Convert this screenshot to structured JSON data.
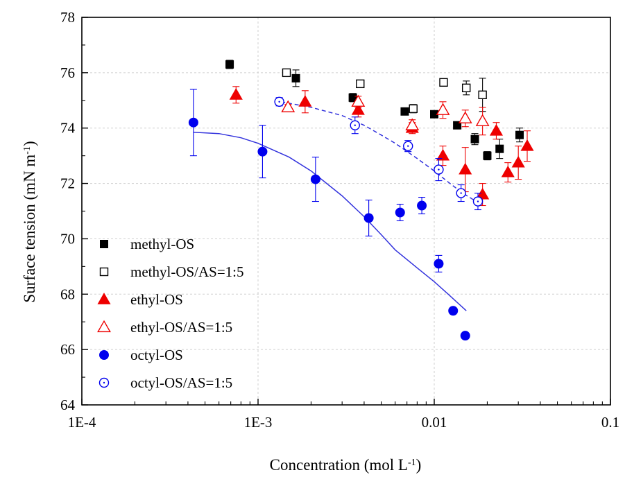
{
  "chart_data": {
    "type": "scatter",
    "title": "",
    "xlabel": "Concentration (mol L",
    "xlabel_sup": "-1",
    "xlabel_close": ")",
    "ylabel": "Surface tension (mN m",
    "ylabel_sup": "-1",
    "ylabel_close": ")",
    "x_scale": "log",
    "xlim": [
      0.0001,
      0.1
    ],
    "ylim": [
      64,
      78
    ],
    "x_ticks": [
      0.0001,
      0.001,
      0.01,
      0.1
    ],
    "x_tick_labels": [
      "1E-4",
      "1E-3",
      "0.01",
      "0.1"
    ],
    "y_ticks": [
      64,
      66,
      68,
      70,
      72,
      74,
      76,
      78
    ],
    "y_tick_labels": [
      "64",
      "66",
      "68",
      "70",
      "72",
      "74",
      "76",
      "78"
    ],
    "grid": true,
    "legend_position": "left-bottom",
    "series": [
      {
        "name": "methyl-OS",
        "marker": "square",
        "filled": true,
        "color": "#000000",
        "points": [
          {
            "x": 0.00069,
            "y": 76.3,
            "err": 0.15
          },
          {
            "x": 0.00164,
            "y": 75.8,
            "err": 0.3
          },
          {
            "x": 0.00345,
            "y": 75.1,
            "err": 0.15
          },
          {
            "x": 0.0068,
            "y": 74.6,
            "err": 0.12
          },
          {
            "x": 0.01,
            "y": 74.5,
            "err": 0.12
          },
          {
            "x": 0.0135,
            "y": 74.1,
            "err": 0.12
          },
          {
            "x": 0.017,
            "y": 73.6,
            "err": 0.2
          },
          {
            "x": 0.02,
            "y": 73.0,
            "err": 0.15
          },
          {
            "x": 0.0235,
            "y": 73.25,
            "err": 0.35
          },
          {
            "x": 0.0305,
            "y": 73.75,
            "err": 0.25
          }
        ]
      },
      {
        "name": "methyl-OS/AS=1:5",
        "marker": "square",
        "filled": false,
        "color": "#000000",
        "points": [
          {
            "x": 0.00145,
            "y": 76.0,
            "err": 0.1
          },
          {
            "x": 0.0038,
            "y": 75.6,
            "err": 0.1
          },
          {
            "x": 0.0076,
            "y": 74.7,
            "err": 0.15
          },
          {
            "x": 0.0113,
            "y": 75.65,
            "err": 0.1
          },
          {
            "x": 0.0152,
            "y": 75.45,
            "err": 0.25
          },
          {
            "x": 0.0188,
            "y": 75.2,
            "err": 0.6
          }
        ]
      },
      {
        "name": "ethyl-OS",
        "marker": "triangle",
        "filled": true,
        "color": "#ee0000",
        "points": [
          {
            "x": 0.00075,
            "y": 75.2,
            "err": 0.3
          },
          {
            "x": 0.00185,
            "y": 74.95,
            "err": 0.4
          },
          {
            "x": 0.0037,
            "y": 74.65,
            "err": 0.25
          },
          {
            "x": 0.0075,
            "y": 74.0,
            "err": 0.2
          },
          {
            "x": 0.0112,
            "y": 73.0,
            "err": 0.35
          },
          {
            "x": 0.015,
            "y": 72.5,
            "err": 0.8
          },
          {
            "x": 0.0188,
            "y": 71.6,
            "err": 0.4
          },
          {
            "x": 0.0225,
            "y": 73.9,
            "err": 0.3
          },
          {
            "x": 0.0262,
            "y": 72.4,
            "err": 0.35
          },
          {
            "x": 0.03,
            "y": 72.75,
            "err": 0.6
          },
          {
            "x": 0.0337,
            "y": 73.35,
            "err": 0.55
          }
        ]
      },
      {
        "name": "ethyl-OS/AS=1:5",
        "marker": "triangle",
        "filled": false,
        "color": "#ee0000",
        "points": [
          {
            "x": 0.00148,
            "y": 74.75,
            "err": 0.1
          },
          {
            "x": 0.0037,
            "y": 74.95,
            "err": 0.2
          },
          {
            "x": 0.0075,
            "y": 74.1,
            "err": 0.2
          },
          {
            "x": 0.0112,
            "y": 74.65,
            "err": 0.3
          },
          {
            "x": 0.015,
            "y": 74.35,
            "err": 0.3
          },
          {
            "x": 0.0188,
            "y": 74.25,
            "err": 0.5
          }
        ]
      },
      {
        "name": "octyl-OS",
        "marker": "circle",
        "filled": true,
        "color": "#0000ee",
        "points": [
          {
            "x": 0.00043,
            "y": 74.2,
            "err": 1.2
          },
          {
            "x": 0.00106,
            "y": 73.15,
            "err": 0.95
          },
          {
            "x": 0.00212,
            "y": 72.15,
            "err": 0.8
          },
          {
            "x": 0.00425,
            "y": 70.75,
            "err": 0.65
          },
          {
            "x": 0.0064,
            "y": 70.95,
            "err": 0.3
          },
          {
            "x": 0.0085,
            "y": 71.2,
            "err": 0.3
          },
          {
            "x": 0.0106,
            "y": 69.1,
            "err": 0.3
          },
          {
            "x": 0.0128,
            "y": 67.4,
            "err": 0
          },
          {
            "x": 0.015,
            "y": 66.5,
            "err": 0
          }
        ]
      },
      {
        "name": "octyl-OS/AS=1:5",
        "marker": "circle",
        "filled": false,
        "color": "#0000ee",
        "points": [
          {
            "x": 0.00132,
            "y": 74.95,
            "err": 0.15
          },
          {
            "x": 0.00355,
            "y": 74.1,
            "err": 0.3
          },
          {
            "x": 0.0071,
            "y": 73.35,
            "err": 0.2
          },
          {
            "x": 0.0106,
            "y": 72.5,
            "err": 0.4
          },
          {
            "x": 0.0142,
            "y": 71.65,
            "err": 0.3
          },
          {
            "x": 0.0177,
            "y": 71.35,
            "err": 0.3
          }
        ]
      }
    ],
    "fit_curves": [
      {
        "color": "#3333dd",
        "dashed": false,
        "points": [
          {
            "x": 0.00043,
            "y": 73.85
          },
          {
            "x": 0.0006,
            "y": 73.8
          },
          {
            "x": 0.0008,
            "y": 73.65
          },
          {
            "x": 0.001,
            "y": 73.45
          },
          {
            "x": 0.0015,
            "y": 72.95
          },
          {
            "x": 0.002,
            "y": 72.45
          },
          {
            "x": 0.003,
            "y": 71.55
          },
          {
            "x": 0.004,
            "y": 70.8
          },
          {
            "x": 0.005,
            "y": 70.15
          },
          {
            "x": 0.006,
            "y": 69.6
          },
          {
            "x": 0.008,
            "y": 68.95
          },
          {
            "x": 0.01,
            "y": 68.45
          },
          {
            "x": 0.012,
            "y": 68.0
          },
          {
            "x": 0.0152,
            "y": 67.4
          }
        ]
      },
      {
        "color": "#3333dd",
        "dashed": true,
        "points": [
          {
            "x": 0.00135,
            "y": 74.95
          },
          {
            "x": 0.002,
            "y": 74.75
          },
          {
            "x": 0.003,
            "y": 74.45
          },
          {
            "x": 0.004,
            "y": 74.1
          },
          {
            "x": 0.005,
            "y": 73.75
          },
          {
            "x": 0.006,
            "y": 73.45
          },
          {
            "x": 0.008,
            "y": 72.9
          },
          {
            "x": 0.01,
            "y": 72.45
          },
          {
            "x": 0.012,
            "y": 72.05
          },
          {
            "x": 0.0145,
            "y": 71.65
          },
          {
            "x": 0.0178,
            "y": 71.3
          }
        ]
      }
    ]
  }
}
